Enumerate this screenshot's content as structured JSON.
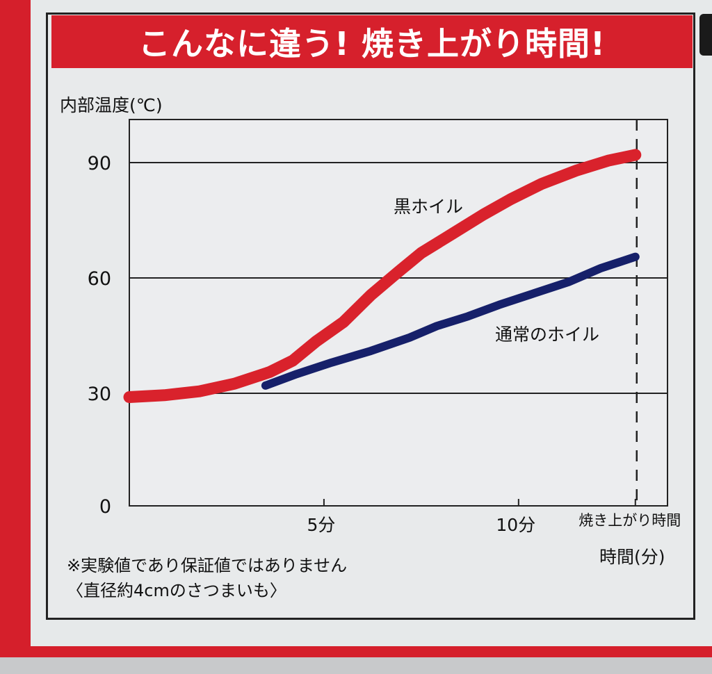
{
  "title": "こんなに違う! 焼き上がり時間!",
  "chart_data": {
    "type": "line",
    "ylabel": "内部温度(℃)",
    "xlabel": "時間(分)",
    "yticks": [
      0,
      30,
      60,
      90
    ],
    "ylim": [
      0,
      100
    ],
    "xticks": [
      {
        "x": 5,
        "label": "5分"
      },
      {
        "x": 10,
        "label": "10分"
      },
      {
        "x": 13,
        "label": "焼き上がり時間"
      }
    ],
    "xlim": [
      0,
      13.5
    ],
    "series": [
      {
        "name": "黒ホイル",
        "color": "#d9222c",
        "points": [
          [
            0,
            29
          ],
          [
            0.9,
            29.5
          ],
          [
            1.8,
            30.5
          ],
          [
            2.7,
            32.5
          ],
          [
            3.6,
            35.5
          ],
          [
            4.2,
            38.5
          ],
          [
            4.8,
            43.5
          ],
          [
            5.5,
            48.5
          ],
          [
            6.2,
            55.5
          ],
          [
            6.9,
            61.5
          ],
          [
            7.5,
            66.5
          ],
          [
            8.3,
            71.5
          ],
          [
            9.1,
            76.5
          ],
          [
            9.8,
            80.5
          ],
          [
            10.6,
            84.5
          ],
          [
            11.5,
            88
          ],
          [
            12.3,
            90.5
          ],
          [
            13,
            92
          ]
        ]
      },
      {
        "name": "通常のホイル",
        "color": "#16206a",
        "points": [
          [
            3.5,
            32
          ],
          [
            4.3,
            35
          ],
          [
            5.2,
            38
          ],
          [
            6.2,
            41
          ],
          [
            7.2,
            44.5
          ],
          [
            7.9,
            47.5
          ],
          [
            8.7,
            50
          ],
          [
            9.5,
            53
          ],
          [
            10.4,
            56
          ],
          [
            11.3,
            59
          ],
          [
            12.1,
            62.5
          ],
          [
            13,
            65.5
          ]
        ]
      }
    ],
    "annotations": [
      {
        "text": "焼き上がり時間",
        "type": "dashed-vertical",
        "x": 13
      }
    ],
    "grid": "horizontal"
  },
  "notes": [
    "※実験値であり保証値ではありません",
    "〈直径約4cmのさつまいも〉"
  ]
}
